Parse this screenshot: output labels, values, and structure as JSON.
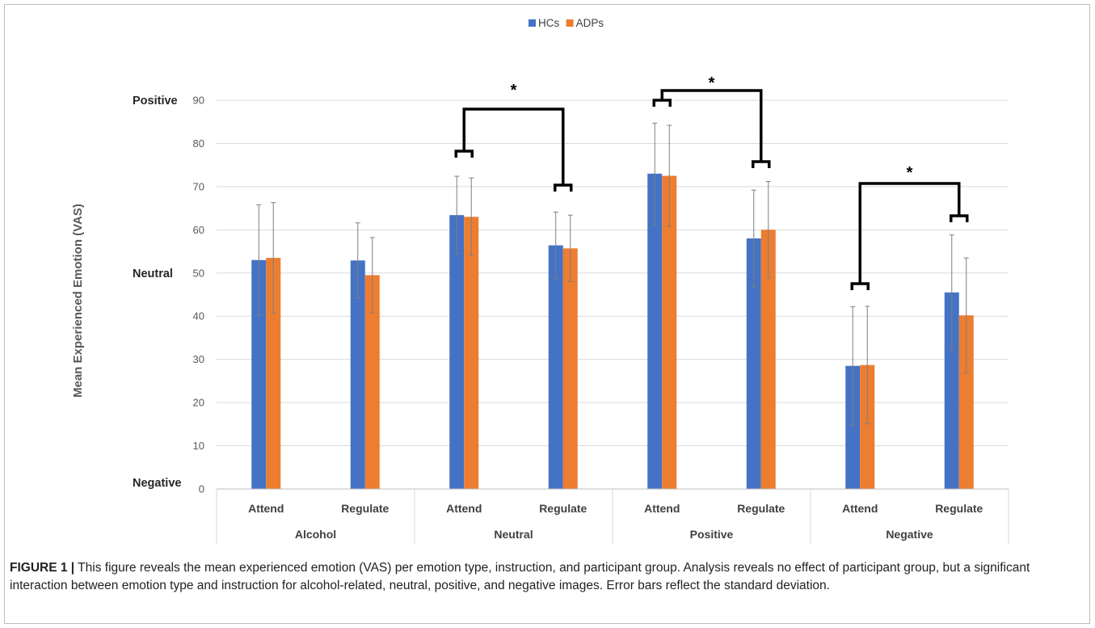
{
  "chart_data": {
    "type": "bar",
    "legend": [
      {
        "name": "HCs",
        "color": "#4472c4"
      },
      {
        "name": "ADPs",
        "color": "#ed7d31"
      }
    ],
    "legend_position": "top-center",
    "ylabel": "Mean Experienced Emotion (VAS)",
    "ylim": [
      0,
      90
    ],
    "yticks": [
      "0",
      "10",
      "20",
      "30",
      "40",
      "50",
      "60",
      "70",
      "80",
      "90"
    ],
    "y_anchor_labels": [
      {
        "text": "Positive",
        "value": 90
      },
      {
        "text": "Neutral",
        "value": 50
      },
      {
        "text": "Negative",
        "value": 0
      }
    ],
    "grid": true,
    "groups": [
      "Alcohol",
      "Neutral",
      "Positive",
      "Negative"
    ],
    "categories": [
      "Attend",
      "Regulate",
      "Attend",
      "Regulate",
      "Attend",
      "Regulate",
      "Attend",
      "Regulate"
    ],
    "series": [
      {
        "name": "HCs",
        "color": "#4472c4",
        "values": [
          53.0,
          52.9,
          63.4,
          56.4,
          73.0,
          58.0,
          28.5,
          45.5
        ],
        "errors": [
          12.8,
          8.7,
          9.0,
          7.7,
          11.7,
          11.2,
          13.7,
          13.3
        ]
      },
      {
        "name": "ADPs",
        "color": "#ed7d31",
        "values": [
          53.5,
          49.5,
          63.0,
          55.7,
          72.5,
          60.0,
          28.7,
          40.2
        ],
        "errors": [
          12.8,
          8.7,
          9.0,
          7.7,
          11.7,
          11.2,
          13.6,
          13.3
        ]
      }
    ],
    "significance": [
      {
        "group": "Neutral",
        "label": "*"
      },
      {
        "group": "Positive",
        "label": "*"
      },
      {
        "group": "Negative",
        "label": "*"
      }
    ]
  },
  "caption": {
    "label": "FIGURE 1 |",
    "text": "This figure reveals the mean experienced emotion (VAS) per emotion type, instruction, and participant group. Analysis reveals no effect of participant group, but a significant interaction between emotion type and instruction for alcohol-related, neutral, positive, and negative images. Error bars reflect the standard deviation."
  }
}
